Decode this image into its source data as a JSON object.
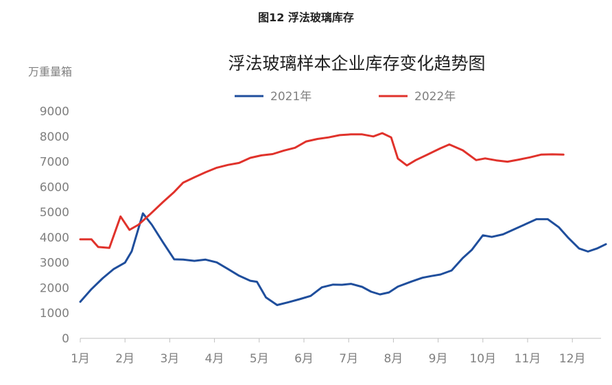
{
  "caption": "图12 浮法玻璃库存",
  "chart_data": {
    "type": "line",
    "title": "浮法玻璃样本企业库存变化趋势图",
    "ylabel": "万重量箱",
    "xlabel": "",
    "ylim": [
      0,
      9000
    ],
    "yticks": [
      0,
      1000,
      2000,
      3000,
      4000,
      5000,
      6000,
      7000,
      8000,
      9000
    ],
    "xticks": [
      "1月",
      "2月",
      "3月",
      "4月",
      "5月",
      "6月",
      "7月",
      "8月",
      "9月",
      "10月",
      "11月",
      "12月"
    ],
    "xrange": [
      0,
      11.75
    ],
    "legend_position": "top-center",
    "grid": false,
    "series": [
      {
        "name": "2021年",
        "color": "#1f4e9c",
        "x": [
          0,
          0.25,
          0.5,
          0.75,
          1,
          1.15,
          1.4,
          1.6,
          1.85,
          2.1,
          2.3,
          2.55,
          2.8,
          3.05,
          3.3,
          3.55,
          3.8,
          3.95,
          4.15,
          4.4,
          4.65,
          4.9,
          5.15,
          5.4,
          5.65,
          5.85,
          6.05,
          6.3,
          6.5,
          6.7,
          6.9,
          7.1,
          7.4,
          7.65,
          7.85,
          8.05,
          8.3,
          8.55,
          8.75,
          9.0,
          9.2,
          9.45,
          9.7,
          9.95,
          10.2,
          10.45,
          10.7,
          10.9,
          11.15,
          11.35,
          11.55,
          11.75
        ],
        "y": [
          1450,
          1950,
          2380,
          2750,
          3000,
          3450,
          4950,
          4500,
          3800,
          3130,
          3120,
          3070,
          3120,
          3010,
          2750,
          2480,
          2280,
          2240,
          1620,
          1320,
          1430,
          1550,
          1680,
          2020,
          2130,
          2120,
          2160,
          2040,
          1850,
          1740,
          1820,
          2050,
          2250,
          2400,
          2470,
          2530,
          2690,
          3180,
          3500,
          4080,
          4020,
          4120,
          4320,
          4520,
          4720,
          4720,
          4400,
          4000,
          3560,
          3440,
          3560,
          3730
        ]
      },
      {
        "name": "2022年",
        "color": "#e0322b",
        "x": [
          0,
          0.25,
          0.4,
          0.65,
          0.9,
          1.1,
          1.3,
          1.55,
          1.85,
          2.1,
          2.3,
          2.55,
          2.8,
          3.05,
          3.3,
          3.55,
          3.8,
          4.05,
          4.3,
          4.55,
          4.8,
          5.05,
          5.3,
          5.55,
          5.8,
          6.05,
          6.3,
          6.55,
          6.75,
          6.95,
          7.1,
          7.3,
          7.5,
          7.75,
          8.05,
          8.25,
          8.55,
          8.85,
          9.05,
          9.3,
          9.55,
          9.8,
          10.05,
          10.3,
          10.55,
          10.8
        ],
        "y": [
          3920,
          3920,
          3620,
          3580,
          4830,
          4300,
          4500,
          4900,
          5400,
          5800,
          6170,
          6380,
          6580,
          6760,
          6870,
          6950,
          7150,
          7250,
          7300,
          7440,
          7550,
          7800,
          7900,
          7960,
          8050,
          8080,
          8080,
          8000,
          8130,
          7960,
          7120,
          6850,
          7060,
          7270,
          7530,
          7680,
          7450,
          7060,
          7130,
          7050,
          7000,
          7080,
          7170,
          7280,
          7290,
          7280
        ]
      }
    ]
  }
}
